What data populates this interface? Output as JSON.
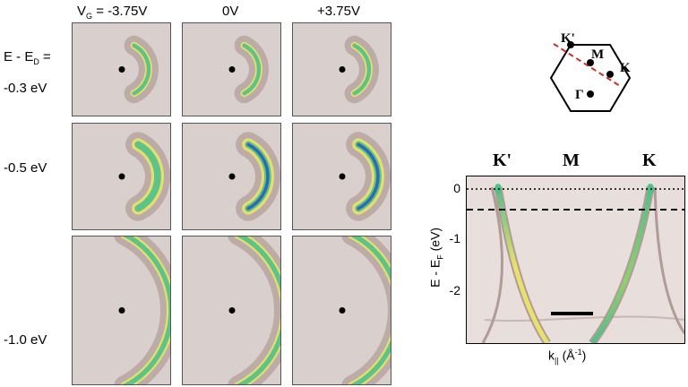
{
  "columns": [
    {
      "html": "V<sub>G</sub> = -3.75V",
      "label": "-3.75V"
    },
    {
      "label": "0V"
    },
    {
      "label": "+3.75V"
    }
  ],
  "column_prefix_a": "V",
  "column_prefix_sub": "G",
  "column_prefix_b": "= -3.75V",
  "rows": [
    {
      "line1a": "E - E",
      "line1sub": "D",
      "line1b": " =",
      "line2": "-0.3 eV"
    },
    {
      "label": "-0.5 eV"
    },
    {
      "label": "-1.0 eV"
    }
  ],
  "bz": {
    "K_prime": "K'",
    "M": "M",
    "K": "K",
    "Gamma": "Γ"
  },
  "band_labels": [
    "K'",
    "M",
    "K"
  ],
  "y_axis": {
    "label_a": "E - E",
    "label_sub": "F",
    "label_b": " (eV)",
    "ticks": [
      "0",
      "-1",
      "-2"
    ]
  },
  "x_axis": {
    "label_a": "k",
    "label_sub": "||",
    "label_b": " (Å",
    "label_sup": "-1",
    "label_c": ")"
  },
  "colors": {
    "panel_bg": "#d8cecb",
    "arc_outer": "#9a7f7a",
    "arc_yellow": "#e6e26a",
    "arc_green": "#4fc08a",
    "arc_blue": "#2a5fb8",
    "dashed_line": "#d22b2b"
  }
}
